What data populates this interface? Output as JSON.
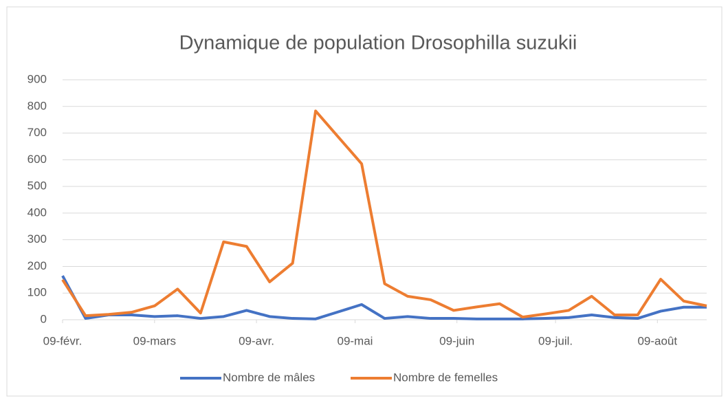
{
  "chart_data": {
    "type": "line",
    "title": "Dynamique de population Drosophilla suzukii",
    "x": [
      "02-09",
      "02-16",
      "02-23",
      "03-02",
      "03-09",
      "03-16",
      "03-23",
      "03-30",
      "04-06",
      "04-13",
      "04-20",
      "04-27",
      "05-04",
      "05-11",
      "05-18",
      "05-25",
      "06-01",
      "06-08",
      "06-15",
      "06-22",
      "06-29",
      "07-06",
      "07-13",
      "07-20",
      "07-27",
      "08-03",
      "08-10",
      "08-17",
      "08-24"
    ],
    "series": [
      {
        "name": "Nombre de mâles",
        "color": "#4472c4",
        "values": [
          165,
          5,
          18,
          18,
          12,
          15,
          5,
          12,
          35,
          12,
          5,
          3,
          30,
          57,
          5,
          12,
          5,
          5,
          3,
          3,
          3,
          5,
          8,
          18,
          8,
          5,
          32,
          47,
          47
        ]
      },
      {
        "name": "Nombre de femelles",
        "color": "#ed7d31",
        "values": [
          150,
          15,
          20,
          28,
          52,
          115,
          25,
          292,
          275,
          142,
          212,
          783,
          684,
          585,
          135,
          88,
          75,
          35,
          48,
          60,
          10,
          22,
          35,
          88,
          18,
          18,
          152,
          70,
          52
        ]
      }
    ],
    "xlim": [
      "02-09",
      "08-24"
    ],
    "xticks": [
      {
        "value": "02-09",
        "label": "09-févr."
      },
      {
        "value": "03-09",
        "label": "09-mars"
      },
      {
        "value": "04-09",
        "label": "09-avr."
      },
      {
        "value": "05-09",
        "label": "09-mai"
      },
      {
        "value": "06-09",
        "label": "09-juin"
      },
      {
        "value": "07-09",
        "label": "09-juil."
      },
      {
        "value": "08-09",
        "label": "09-août"
      }
    ],
    "ylim": [
      0,
      900
    ],
    "yticks": [
      0,
      100,
      200,
      300,
      400,
      500,
      600,
      700,
      800,
      900
    ],
    "grid": true,
    "legend": "bottom"
  }
}
